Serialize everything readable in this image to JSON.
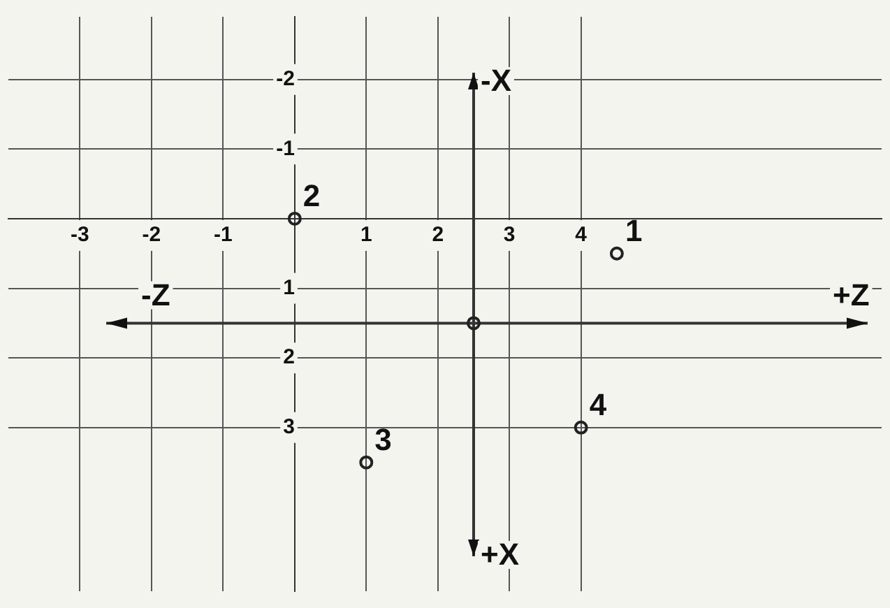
{
  "chart_data": {
    "type": "scatter",
    "x": [
      4.5,
      0,
      1,
      4,
      2.5
    ],
    "values": [
      0.5,
      0,
      3.5,
      3,
      1.5
    ],
    "color": "#222222",
    "marker": "circle",
    "xlim": [
      -4,
      8.2
    ],
    "ylim": [
      5.35,
      -2.9
    ],
    "xticks": [
      -3,
      -2,
      -1,
      {
        "value": 0,
        "label": null
      },
      1,
      2,
      3,
      4
    ],
    "yticks": [
      -2,
      -1,
      {
        "value": 0,
        "label": null
      },
      1,
      2,
      3
    ],
    "grid": true,
    "ref_lines": [
      {
        "axis": "y",
        "value": 1.5
      },
      {
        "axis": "x",
        "value": 2.5
      }
    ],
    "annotations": [
      {
        "text": "1",
        "x": 4.5,
        "y": 0.5
      },
      {
        "text": "2",
        "x": 0,
        "y": 0
      },
      {
        "text": "3",
        "x": 1,
        "y": 3.5
      },
      {
        "text": "4",
        "x": 4,
        "y": 3
      },
      "-Z",
      "+Z",
      "-X",
      "+X"
    ]
  }
}
